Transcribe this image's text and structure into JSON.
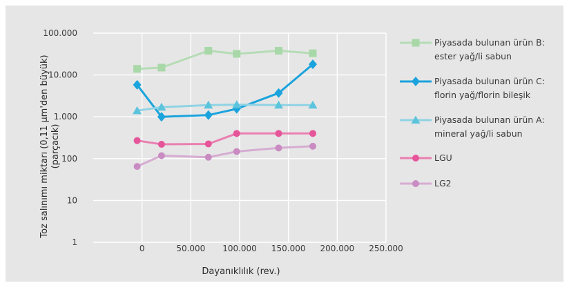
{
  "chart_data": {
    "type": "line",
    "xlabel": "Dayanıklılık (rev.)",
    "ylabel_lines": [
      "Toz salınımı miktarı (0,11 µm'den büyük)",
      "(parçacık)"
    ],
    "y_scale": "log",
    "xlim": [
      -50000,
      250000
    ],
    "ylim": [
      1,
      100000
    ],
    "x_tick_labels": [
      "0",
      "50.000",
      "100.000",
      "150.000",
      "200.000",
      "250.000"
    ],
    "x_tick_values": [
      0,
      50000,
      100000,
      150000,
      200000,
      250000
    ],
    "y_tick_labels": [
      "100.000",
      "10.000",
      "1.000",
      "100",
      "10",
      "1"
    ],
    "y_tick_values": [
      100000,
      10000,
      1000,
      100,
      10,
      1
    ],
    "grid": true,
    "legend_position": "right",
    "series": [
      {
        "name_lines": [
          "Piyasada bulunan ürün B:",
          "ester yağ/li sabun"
        ],
        "color": "#a8d8a8",
        "line_color": "#b5dcb5",
        "marker": "square",
        "x": [
          -5000,
          20000,
          68000,
          97000,
          140000,
          175000
        ],
        "y": [
          14000,
          15000,
          38000,
          32000,
          38000,
          33000
        ]
      },
      {
        "name_lines": [
          "Piyasada bulunan ürün C:",
          "florin yağ/florin bileşik"
        ],
        "color": "#1aa3dc",
        "line_color": "#1aa3dc",
        "marker": "diamond",
        "x": [
          -5000,
          20000,
          68000,
          97000,
          140000,
          175000
        ],
        "y": [
          5800,
          1000,
          1100,
          1550,
          3700,
          18000
        ]
      },
      {
        "name_lines": [
          "Piyasada bulunan ürün A:",
          "mineral yağ/li sabun"
        ],
        "color": "#5bc4dc",
        "line_color": "#8fd3e4",
        "marker": "triangle",
        "x": [
          -5000,
          20000,
          68000,
          97000,
          140000,
          175000
        ],
        "y": [
          1400,
          1700,
          1900,
          1950,
          1900,
          1900
        ]
      },
      {
        "name_lines": [
          "LGU"
        ],
        "color": "#e6559a",
        "line_color": "#ea7fb0",
        "marker": "circle",
        "x": [
          -5000,
          20000,
          68000,
          97000,
          140000,
          175000
        ],
        "y": [
          270,
          220,
          225,
          400,
          400,
          400
        ]
      },
      {
        "name_lines": [
          "LG2"
        ],
        "color": "#c98cc2",
        "line_color": "#d6acd2",
        "marker": "circle",
        "x": [
          -5000,
          20000,
          68000,
          97000,
          140000,
          175000
        ],
        "y": [
          65,
          118,
          108,
          148,
          180,
          198
        ]
      }
    ]
  }
}
